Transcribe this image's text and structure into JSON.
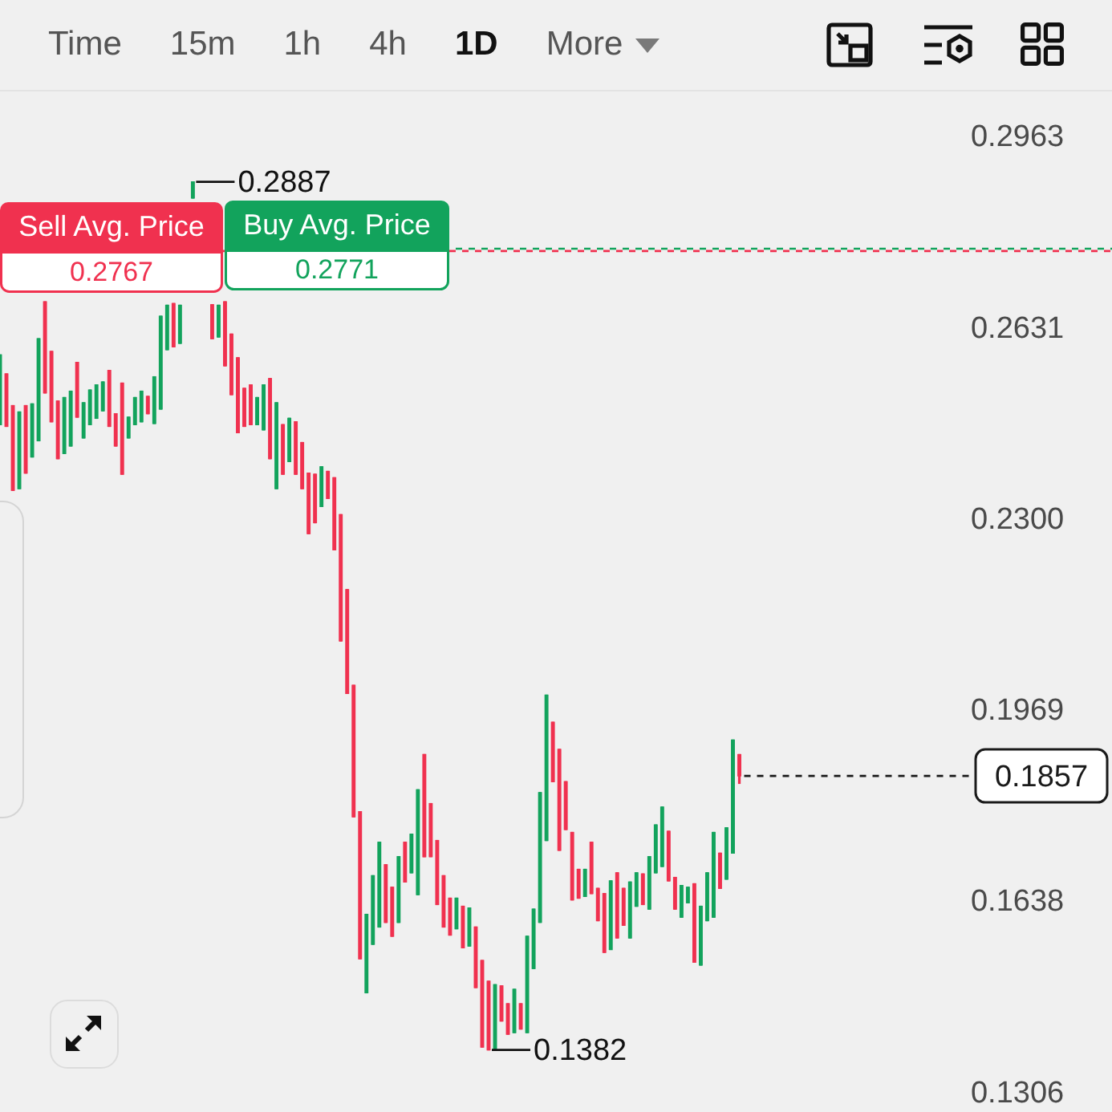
{
  "chart_data": {
    "type": "candlestick",
    "categories": [
      null,
      null,
      null,
      null,
      null,
      null,
      null,
      null,
      null,
      null,
      null,
      null,
      null,
      null,
      null,
      null,
      null,
      null,
      null,
      null,
      null,
      null,
      null,
      null,
      null,
      null,
      null,
      null,
      null,
      null,
      null,
      null,
      null,
      null,
      null,
      null,
      null,
      null,
      null,
      null,
      null,
      null,
      null,
      null,
      null,
      null,
      null,
      null,
      null,
      null,
      null,
      null,
      null,
      null,
      null,
      null,
      null,
      null,
      null,
      null,
      null,
      null,
      null,
      null,
      null,
      null,
      null,
      null,
      null,
      null,
      null,
      null,
      null,
      null,
      null,
      null,
      null,
      null,
      null,
      null,
      null,
      null,
      null,
      null,
      null,
      null,
      null,
      null,
      null,
      null,
      null,
      null,
      null,
      null,
      null,
      null,
      null,
      null,
      null,
      null,
      null,
      null,
      null,
      null,
      null,
      null,
      null,
      null,
      null,
      null,
      null,
      null,
      null,
      null,
      null,
      null,
      null,
      null,
      null,
      null,
      null,
      null,
      null,
      null,
      null,
      null,
      null,
      null,
      null,
      null,
      null,
      null,
      null,
      null,
      null,
      null,
      null,
      null,
      null,
      null,
      null,
      null,
      null,
      null,
      null,
      null,
      null,
      null,
      null,
      null,
      null,
      null
    ],
    "ohlc": [
      [
        0.2466,
        0.2587,
        0.2466,
        0.2587
      ],
      [
        0.2554,
        0.2554,
        0.2463,
        0.2463
      ],
      [
        0.2499,
        0.2499,
        0.2352,
        0.2352
      ],
      [
        0.2355,
        0.2488,
        0.2355,
        0.2488
      ],
      [
        0.2499,
        0.2499,
        0.2382,
        0.2382
      ],
      [
        0.241,
        0.2502,
        0.241,
        0.2502
      ],
      [
        0.2438,
        0.2615,
        0.2438,
        0.2615
      ],
      [
        0.2679,
        0.2679,
        0.2521,
        0.2521
      ],
      [
        0.2593,
        0.2593,
        0.2471,
        0.2471
      ],
      [
        0.2507,
        0.2507,
        0.2407,
        0.2407
      ],
      [
        0.2416,
        0.2513,
        0.2416,
        0.2513
      ],
      [
        0.2429,
        0.2524,
        0.2429,
        0.2524
      ],
      [
        0.2574,
        0.2574,
        0.2479,
        0.2479
      ],
      [
        0.2443,
        0.2504,
        0.2443,
        0.2504
      ],
      [
        0.2466,
        0.2526,
        0.2466,
        0.2526
      ],
      [
        0.2477,
        0.2535,
        0.2477,
        0.2535
      ],
      [
        0.249,
        0.254,
        0.249,
        0.254
      ],
      [
        0.256,
        0.256,
        0.2463,
        0.2463
      ],
      [
        0.2485,
        0.2485,
        0.2429,
        0.2429
      ],
      [
        0.2538,
        0.2538,
        0.238,
        0.238
      ],
      [
        0.2443,
        0.2479,
        0.2443,
        0.2479
      ],
      [
        0.2466,
        0.2513,
        0.2466,
        0.2513
      ],
      [
        0.2471,
        0.2524,
        0.2471,
        0.2524
      ],
      [
        0.2515,
        0.2515,
        0.2485,
        0.2485
      ],
      [
        0.2468,
        0.2549,
        0.2468,
        0.2549
      ],
      [
        0.2493,
        0.2654,
        0.2493,
        0.2654
      ],
      [
        0.2596,
        0.2673,
        0.2596,
        0.2673
      ],
      [
        0.2676,
        0.2676,
        0.2601,
        0.2601
      ],
      [
        0.2607,
        0.2673,
        0.2607,
        0.2673
      ],
      null,
      [
        0.2859,
        0.2887,
        0.2859,
        0.2887
      ],
      null,
      null,
      [
        0.2674,
        0.2674,
        0.2615,
        0.2615
      ],
      [
        0.2618,
        0.2673,
        0.2618,
        0.2673
      ],
      [
        0.2679,
        0.2679,
        0.2568,
        0.2568
      ],
      [
        0.2623,
        0.2623,
        0.2518,
        0.2518
      ],
      [
        0.2582,
        0.2582,
        0.2452,
        0.2452
      ],
      [
        0.2529,
        0.2529,
        0.2463,
        0.2463
      ],
      [
        0.2535,
        0.2535,
        0.2466,
        0.2466
      ],
      [
        0.2466,
        0.2513,
        0.2466,
        0.2513
      ],
      [
        0.2457,
        0.2535,
        0.2457,
        0.2535
      ],
      [
        0.2546,
        0.2546,
        0.2407,
        0.2407
      ],
      [
        0.2355,
        0.2504,
        0.2355,
        0.2504
      ],
      [
        0.2466,
        0.2466,
        0.238,
        0.238
      ],
      [
        0.2402,
        0.2477,
        0.2402,
        0.2477
      ],
      [
        0.2471,
        0.2471,
        0.238,
        0.238
      ],
      [
        0.2435,
        0.2435,
        0.2355,
        0.2355
      ],
      [
        0.2382,
        0.2382,
        0.2277,
        0.2277
      ],
      [
        0.238,
        0.238,
        0.2296,
        0.2296
      ],
      [
        0.2324,
        0.2393,
        0.2324,
        0.2393
      ],
      [
        0.2385,
        0.2385,
        0.2338,
        0.2338
      ],
      [
        0.2374,
        0.2374,
        0.2249,
        0.2249
      ],
      [
        0.231,
        0.231,
        0.2091,
        0.2091
      ],
      [
        0.218,
        0.218,
        0.2,
        0.2
      ],
      [
        0.2014,
        0.2014,
        0.1786,
        0.1786
      ],
      [
        0.1795,
        0.1795,
        0.154,
        0.154
      ],
      [
        0.1481,
        0.1617,
        0.1481,
        0.1617
      ],
      [
        0.1565,
        0.1684,
        0.1565,
        0.1684
      ],
      [
        0.1595,
        0.1742,
        0.1595,
        0.1742
      ],
      [
        0.1703,
        0.1703,
        0.1603,
        0.1603
      ],
      [
        0.1664,
        0.1664,
        0.1579,
        0.1579
      ],
      [
        0.1603,
        0.1717,
        0.1603,
        0.1717
      ],
      [
        0.1742,
        0.1742,
        0.1673,
        0.1673
      ],
      [
        0.1689,
        0.1756,
        0.1689,
        0.1756
      ],
      [
        0.1651,
        0.1833,
        0.1651,
        0.1833
      ],
      [
        0.1894,
        0.1894,
        0.1717,
        0.1717
      ],
      [
        0.1809,
        0.1809,
        0.1717,
        0.1717
      ],
      [
        0.1745,
        0.1745,
        0.1634,
        0.1634
      ],
      [
        0.1684,
        0.1684,
        0.1595,
        0.1595
      ],
      [
        0.1645,
        0.1645,
        0.1581,
        0.1581
      ],
      [
        0.1592,
        0.1645,
        0.1592,
        0.1645
      ],
      [
        0.1631,
        0.1631,
        0.1559,
        0.1559
      ],
      [
        0.1562,
        0.1628,
        0.1562,
        0.1628
      ],
      [
        0.1595,
        0.1595,
        0.149,
        0.149
      ],
      [
        0.1537,
        0.1537,
        0.1387,
        0.1387
      ],
      [
        0.1501,
        0.1501,
        0.1382,
        0.1382
      ],
      [
        0.1384,
        0.1495,
        0.1384,
        0.1495
      ],
      [
        0.1493,
        0.1493,
        0.1432,
        0.1432
      ],
      [
        0.1462,
        0.1462,
        0.1409,
        0.1409
      ],
      [
        0.1412,
        0.1487,
        0.1412,
        0.1487
      ],
      [
        0.1462,
        0.1462,
        0.1418,
        0.1418
      ],
      [
        0.1412,
        0.1579,
        0.1412,
        0.1579
      ],
      [
        0.1523,
        0.1626,
        0.1523,
        0.1626
      ],
      [
        0.1603,
        0.1828,
        0.1603,
        0.1828
      ],
      [
        0.1745,
        0.1997,
        0.1745,
        0.1997
      ],
      [
        0.195,
        0.195,
        0.1847,
        0.1847
      ],
      [
        0.1903,
        0.1903,
        0.1728,
        0.1728
      ],
      [
        0.1847,
        0.1847,
        0.1764,
        0.1764
      ],
      [
        0.1759,
        0.1759,
        0.1642,
        0.1642
      ],
      [
        0.1695,
        0.1695,
        0.1645,
        0.1645
      ],
      [
        0.1648,
        0.1695,
        0.1648,
        0.1695
      ],
      [
        0.1742,
        0.1742,
        0.1653,
        0.1653
      ],
      [
        0.1662,
        0.1662,
        0.1606,
        0.1606
      ],
      [
        0.1653,
        0.1653,
        0.1551,
        0.1551
      ],
      [
        0.1556,
        0.1675,
        0.1556,
        0.1675
      ],
      [
        0.1689,
        0.1689,
        0.1576,
        0.1576
      ],
      [
        0.1662,
        0.1662,
        0.1598,
        0.1598
      ],
      [
        0.1576,
        0.1673,
        0.1576,
        0.1673
      ],
      [
        0.1631,
        0.1689,
        0.1631,
        0.1689
      ],
      [
        0.1687,
        0.1687,
        0.1634,
        0.1634
      ],
      [
        0.1626,
        0.1717,
        0.1626,
        0.1717
      ],
      [
        0.1689,
        0.1772,
        0.1689,
        0.1772
      ],
      [
        0.17,
        0.1803,
        0.17,
        0.1803
      ],
      [
        0.1761,
        0.1761,
        0.1675,
        0.1675
      ],
      [
        0.1681,
        0.1681,
        0.1626,
        0.1626
      ],
      [
        0.1612,
        0.1667,
        0.1612,
        0.1667
      ],
      [
        0.1637,
        0.1664,
        0.1637,
        0.1664
      ],
      [
        0.167,
        0.167,
        0.1534,
        0.1534
      ],
      [
        0.1529,
        0.1631,
        0.1529,
        0.1631
      ],
      [
        0.1606,
        0.1689,
        0.1606,
        0.1689
      ],
      [
        0.1612,
        0.1759,
        0.1612,
        0.1759
      ],
      [
        0.1723,
        0.1723,
        0.1662,
        0.1662
      ],
      [
        0.1678,
        0.1767,
        0.1678,
        0.1767
      ],
      [
        0.1723,
        0.1919,
        0.1723,
        0.1919
      ],
      [
        0.1894,
        0.1894,
        0.1844,
        0.1857
      ],
      null,
      null,
      null,
      null,
      null,
      null,
      null,
      null,
      null,
      null,
      null,
      null,
      null,
      null,
      null,
      null,
      null,
      null,
      null,
      null,
      null,
      null,
      null,
      null,
      null,
      null,
      null,
      null,
      null,
      null,
      null,
      null,
      null,
      null,
      null,
      null
    ],
    "colors": [
      "#12a35c",
      "#f0314f",
      "#f0314f",
      "#12a35c",
      "#f0314f",
      "#12a35c",
      "#12a35c",
      "#f0314f",
      "#f0314f",
      "#f0314f",
      "#12a35c",
      "#12a35c",
      "#f0314f",
      "#12a35c",
      "#12a35c",
      "#12a35c",
      "#12a35c",
      "#f0314f",
      "#f0314f",
      "#f0314f",
      "#12a35c",
      "#12a35c",
      "#12a35c",
      "#f0314f",
      "#12a35c",
      "#12a35c",
      "#12a35c",
      "#f0314f",
      "#12a35c",
      null,
      "#12a35c",
      null,
      null,
      "#f0314f",
      "#12a35c",
      "#f0314f",
      "#f0314f",
      "#f0314f",
      "#f0314f",
      "#f0314f",
      "#12a35c",
      "#12a35c",
      "#f0314f",
      "#12a35c",
      "#f0314f",
      "#12a35c",
      "#f0314f",
      "#f0314f",
      "#f0314f",
      "#f0314f",
      "#12a35c",
      "#f0314f",
      "#f0314f",
      "#f0314f",
      "#f0314f",
      "#f0314f",
      "#f0314f",
      "#12a35c",
      "#12a35c",
      "#12a35c",
      "#f0314f",
      "#f0314f",
      "#12a35c",
      "#f0314f",
      "#12a35c",
      "#12a35c",
      "#f0314f",
      "#f0314f",
      "#f0314f",
      "#f0314f",
      "#f0314f",
      "#12a35c",
      "#f0314f",
      "#12a35c",
      "#f0314f",
      "#f0314f",
      "#f0314f",
      "#12a35c",
      "#f0314f",
      "#f0314f",
      "#12a35c",
      "#f0314f",
      "#12a35c",
      "#12a35c",
      "#12a35c",
      "#12a35c",
      "#f0314f",
      "#f0314f",
      "#f0314f",
      "#f0314f",
      "#f0314f",
      "#12a35c",
      "#f0314f",
      "#f0314f",
      "#f0314f",
      "#12a35c",
      "#f0314f",
      "#f0314f",
      "#12a35c",
      "#12a35c",
      "#f0314f",
      "#12a35c",
      "#12a35c",
      "#12a35c",
      "#f0314f",
      "#f0314f",
      "#12a35c",
      "#12a35c",
      "#f0314f",
      "#12a35c",
      "#12a35c",
      "#12a35c",
      "#f0314f",
      "#12a35c",
      "#12a35c",
      "#f0314f",
      null,
      null,
      null,
      null,
      null,
      null,
      null,
      null,
      null,
      null,
      null,
      null,
      null,
      null,
      null,
      null,
      null,
      null,
      null,
      null,
      null,
      null,
      null,
      null,
      null,
      null,
      null,
      null,
      null,
      null,
      null,
      null,
      null,
      null,
      null,
      null
    ],
    "ylim": [
      0.1306,
      0.2963
    ],
    "yticks": [
      0.2963,
      0.2631,
      {
        "value": 0.23,
        "label": "0.2300"
      },
      0.1969,
      0.1638,
      0.1306
    ],
    "tick_labels": "y",
    "grid": false,
    "legend": false,
    "ref_lines": [
      {
        "axis": "y",
        "value": 0.2767,
        "label": "Sell Avg. Price",
        "color": "#f0314f",
        "line_style": "dashed"
      },
      {
        "axis": "y",
        "value": 0.2771,
        "label": "Buy Avg. Price",
        "color": "#12a35c",
        "line_style": "dashed"
      },
      {
        "axis": "y",
        "value": 0.1857,
        "label": "0.1857",
        "color": "#1a1a1a",
        "line_style": "dashed"
      }
    ],
    "annotations": [
      "Time",
      "15m",
      "1h",
      "4h",
      "1D",
      "More",
      "0.2887",
      "0.1382",
      {
        "text": "0.2767",
        "y": 0.2767
      },
      {
        "text": "0.2771",
        "y": 0.2771
      }
    ]
  }
}
